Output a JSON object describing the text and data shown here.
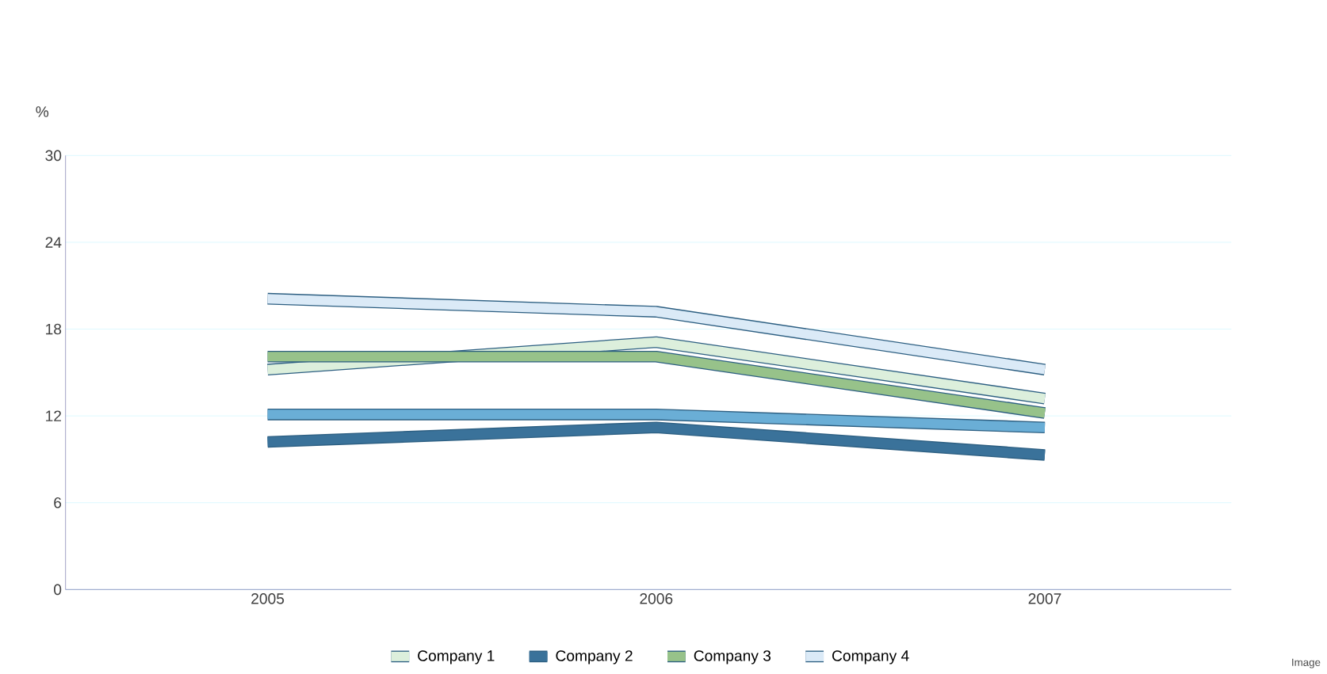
{
  "chart_data": {
    "type": "line",
    "ylabel": "%",
    "categories": [
      "2005",
      "2006",
      "2007"
    ],
    "series": [
      {
        "color": "#6aaed6",
        "values": [
          12.1,
          12.1,
          11.2
        ]
      },
      {
        "name": "Company 1",
        "color": "#dcefdc",
        "values": [
          15.2,
          17.1,
          13.2
        ]
      },
      {
        "name": "Company  2",
        "color": "#3a729a",
        "values": [
          10.2,
          11.2,
          9.3
        ]
      },
      {
        "name": "Company  3",
        "color": "#97c28a",
        "values": [
          16.1,
          16.1,
          12.2
        ]
      },
      {
        "name": "Company  4",
        "color": "#dbeaf7",
        "values": [
          20.1,
          19.2,
          15.2
        ]
      }
    ],
    "ylim": [
      0,
      30
    ],
    "yticks": [
      0,
      6,
      12,
      18,
      24,
      30
    ],
    "grid": "y",
    "legend": "bottom",
    "marker": "none",
    "line_style": "solid",
    "annotations": [
      "Image"
    ]
  }
}
